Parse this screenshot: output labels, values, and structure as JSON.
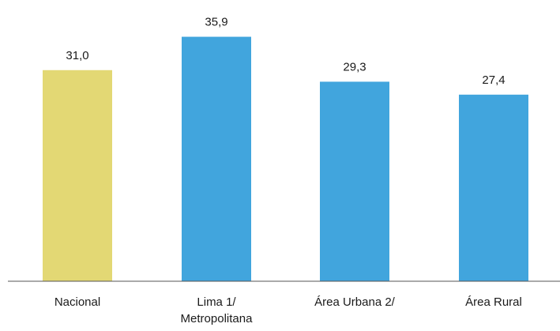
{
  "chart_data": {
    "type": "bar",
    "categories": [
      [
        "Nacional"
      ],
      [
        "Lima 1/",
        "Metropolitana"
      ],
      [
        "Área Urbana 2/"
      ],
      [
        "Área Rural"
      ]
    ],
    "values": [
      31.0,
      35.9,
      29.3,
      27.4
    ],
    "value_labels": [
      "31,0",
      "35,9",
      "29,3",
      "27,4"
    ],
    "bar_colors": [
      "#E3D874",
      "#41A5DD",
      "#41A5DD",
      "#41A5DD"
    ],
    "axis_color": "#555555",
    "ylim": [
      0,
      40
    ],
    "grid": false,
    "legend": "none"
  }
}
